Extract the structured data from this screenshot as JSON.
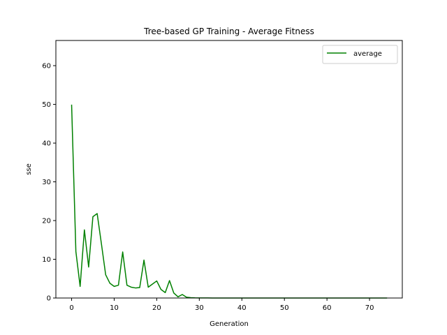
{
  "chart_data": {
    "type": "line",
    "title": "Tree-based GP Training - Average Fitness",
    "xlabel": "Generation",
    "ylabel": "sse",
    "xlim": [
      -3.7,
      77.7
    ],
    "ylim": [
      0,
      66.5
    ],
    "xticks": [
      0,
      10,
      20,
      30,
      40,
      50,
      60,
      70
    ],
    "yticks": [
      0,
      10,
      20,
      30,
      40,
      50,
      60
    ],
    "grid": false,
    "legend_position": "top-right",
    "series": [
      {
        "name": "average",
        "color": "#008000",
        "x": [
          0,
          1,
          2,
          3,
          4,
          5,
          6,
          7,
          8,
          9,
          10,
          11,
          12,
          13,
          14,
          15,
          16,
          17,
          18,
          19,
          20,
          21,
          22,
          23,
          24,
          25,
          26,
          27,
          28,
          29,
          30,
          31,
          32,
          33,
          34,
          35,
          36,
          37,
          38,
          39,
          40,
          41,
          42,
          43,
          44,
          45,
          46,
          47,
          48,
          49,
          50,
          51,
          52,
          53,
          54,
          55,
          56,
          57,
          58,
          59,
          60,
          61,
          62,
          63,
          64,
          65,
          66,
          67,
          68,
          69,
          70,
          71,
          72,
          73,
          74
        ],
        "y": [
          49.8,
          12.0,
          3.0,
          17.6,
          8.0,
          21.0,
          21.8,
          14.0,
          6.0,
          3.8,
          3.0,
          3.3,
          11.9,
          3.3,
          2.8,
          2.6,
          2.7,
          9.8,
          2.8,
          3.6,
          4.4,
          2.2,
          1.4,
          4.5,
          1.3,
          0.3,
          0.9,
          0.2,
          0.1,
          0.05,
          0.03,
          0.02,
          0.02,
          0.01,
          0.01,
          0.01,
          0,
          0,
          0,
          0,
          0,
          0,
          0,
          0,
          0,
          0,
          0,
          0,
          0,
          0,
          0,
          0,
          0,
          0,
          0,
          0,
          0,
          0,
          0,
          0,
          0,
          0,
          0,
          0,
          0,
          0,
          0,
          0,
          0,
          0,
          0,
          0,
          0,
          0,
          0
        ]
      }
    ]
  }
}
